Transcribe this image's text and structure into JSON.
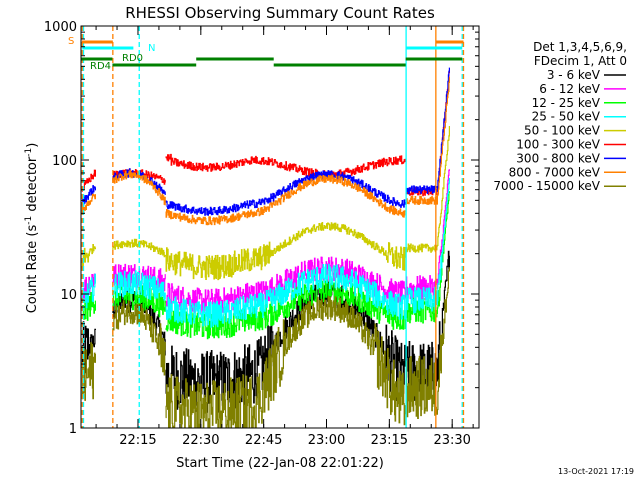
{
  "chart_data": {
    "type": "line",
    "title": "RHESSI Observing Summary Count Rates",
    "xlabel": "Start Time (22-Jan-08 22:01:22)",
    "ylabel_main": "Count Rate (s",
    "ylabel_sup1": "-1",
    "ylabel_mid": " detector",
    "ylabel_sup2": "-1",
    "ylabel_end": ")",
    "yscale": "log",
    "ylim": [
      1,
      1000
    ],
    "xlim_minutes": [
      0,
      95
    ],
    "x_ticks": [
      {
        "label": "22:15",
        "minute": 13.6
      },
      {
        "label": "22:30",
        "minute": 28.6
      },
      {
        "label": "22:45",
        "minute": 43.6
      },
      {
        "label": "23:00",
        "minute": 58.6
      },
      {
        "label": "23:15",
        "minute": 73.6
      },
      {
        "label": "23:30",
        "minute": 88.6
      }
    ],
    "y_ticks": [
      {
        "label": "1",
        "value": 1
      },
      {
        "label": "10",
        "value": 10
      },
      {
        "label": "100",
        "value": 100
      },
      {
        "label": "1000",
        "value": 1000
      }
    ],
    "legend_header": [
      "Det 1,3,4,5,6,9,",
      "FDecim 1, Att 0"
    ],
    "series": [
      {
        "name": "3 - 6 keV",
        "color": "#000000",
        "levels": [
          4.0,
          9,
          2.5,
          10,
          2.6
        ]
      },
      {
        "name": "6 - 12 keV",
        "color": "#ff00ff",
        "levels": [
          12,
          14,
          10,
          15.5,
          11
        ]
      },
      {
        "name": "12 - 25 keV",
        "color": "#00ff00",
        "levels": [
          8,
          9.5,
          6.5,
          10.5,
          7.5
        ]
      },
      {
        "name": "25 - 50 keV",
        "color": "#00ffff",
        "levels": [
          10,
          12,
          8,
          13.5,
          9
        ]
      },
      {
        "name": "50 - 100 keV",
        "color": "#cccc00",
        "levels": [
          20,
          24,
          18,
          32,
          22
        ]
      },
      {
        "name": "100 - 300 keV",
        "color": "#ff0000",
        "levels": [
          70,
          80,
          100,
          78,
          58
        ]
      },
      {
        "name": "300 - 800 keV",
        "color": "#0000ff",
        "levels": [
          55,
          80,
          47,
          78,
          60
        ]
      },
      {
        "name": "800 - 7000 keV",
        "color": "#ff8000",
        "levels": [
          48,
          78,
          40,
          72,
          50
        ]
      },
      {
        "name": "7000 - 15000 keV",
        "color": "#808000",
        "levels": [
          2.5,
          7.5,
          1.5,
          8.0,
          2.0
        ]
      }
    ],
    "flags": [
      {
        "label": "S",
        "color": "#ff8000"
      },
      {
        "label": "N",
        "color": "#00ffff"
      },
      {
        "label": "RD0",
        "color": "#008000"
      },
      {
        "label": "RD4",
        "color": "#008000"
      }
    ],
    "timestamp": "13-Oct-2021 17:19"
  }
}
